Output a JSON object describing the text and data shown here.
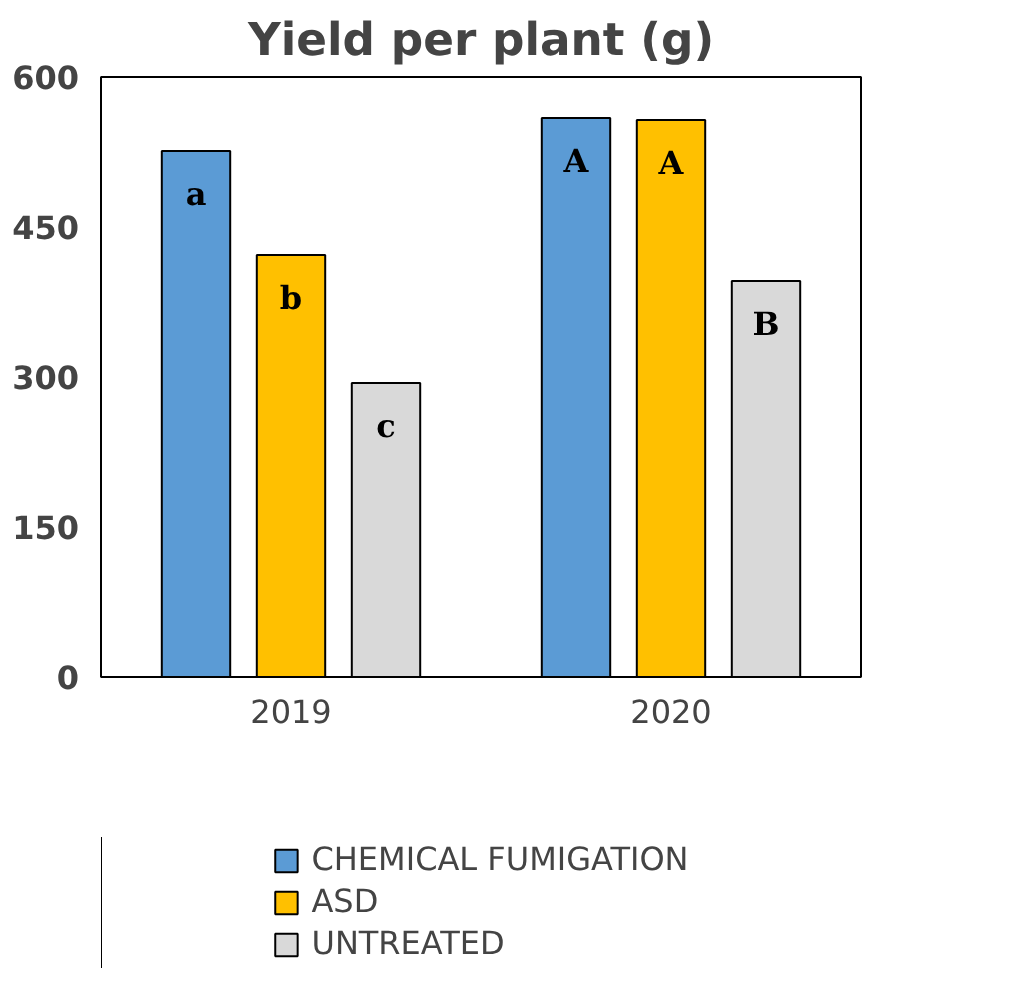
{
  "chart_data": {
    "type": "bar",
    "title": "Yield per plant (g)",
    "categories": [
      "2019",
      "2020"
    ],
    "series": [
      {
        "name": "CHEMICAL FUMIGATION",
        "color": "#5b9bd5",
        "values": [
          526,
          559
        ],
        "value_labels": [
          "a",
          "A"
        ]
      },
      {
        "name": "ASD",
        "color": "#ffc000",
        "values": [
          422,
          557
        ],
        "value_labels": [
          "b",
          "A"
        ]
      },
      {
        "name": "UNTREATED",
        "color": "#d9d9d9",
        "values": [
          294,
          396
        ],
        "value_labels": [
          "c",
          "B"
        ]
      }
    ],
    "ylim": [
      0,
      600
    ],
    "yticks": [
      0,
      150,
      300,
      450,
      600
    ],
    "grid": false,
    "legend": "bottom"
  }
}
